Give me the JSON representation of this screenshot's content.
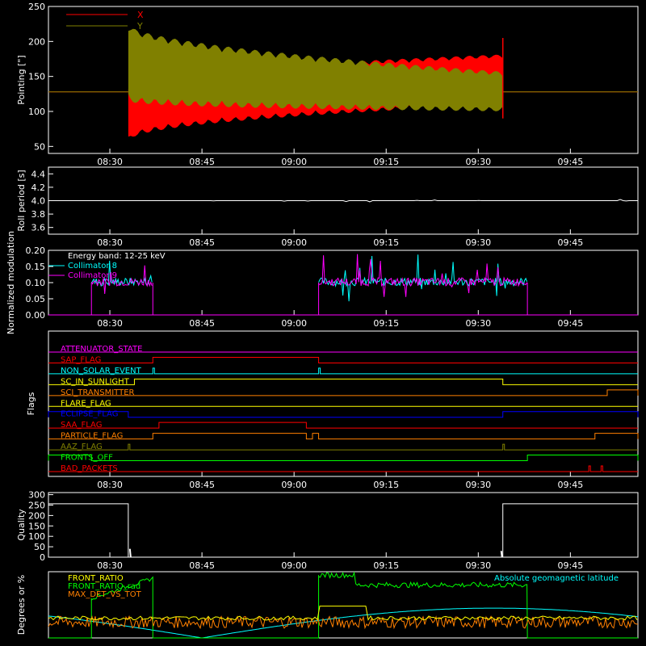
{
  "colors": {
    "background": "#000000",
    "axes": "#ffffff",
    "red": "#ff0000",
    "olive": "#808000",
    "cyan": "#00ffff",
    "magenta": "#ff00ff",
    "green": "#00ff00",
    "yellow": "#ffff00",
    "orange": "#ff8000",
    "blue": "#0000ff",
    "white": "#ffffff"
  },
  "time_ticks": [
    "08:30",
    "08:45",
    "09:00",
    "09:15",
    "09:30",
    "09:45"
  ],
  "chart_data": [
    {
      "id": "pointing",
      "type": "line",
      "title": "",
      "ylabel": "Pointing [\"]",
      "xlabel": "",
      "ylim": [
        40,
        250
      ],
      "yticks": [
        50,
        100,
        150,
        200,
        250
      ],
      "legend": "top-left",
      "series": [
        {
          "name": "X",
          "color": "red",
          "baseline": 128,
          "active_range": [
            "08:33",
            "09:34"
          ],
          "upper_start": 132,
          "upper_end": 176,
          "lower_start": 64,
          "lower_end": 115
        },
        {
          "name": "Y",
          "color": "olive",
          "baseline": 128,
          "active_range": [
            "08:33",
            "09:34"
          ],
          "upper_start": 215,
          "upper_end": 150,
          "lower_start": 125,
          "lower_end": 107
        }
      ]
    },
    {
      "id": "roll",
      "type": "line",
      "title": "",
      "ylabel": "Roll period [s]",
      "xlabel": "",
      "ylim": [
        3.5,
        4.5
      ],
      "yticks": [
        3.6,
        3.8,
        4.0,
        4.2,
        4.4
      ],
      "series": [
        {
          "color": "white",
          "value": 4.0
        }
      ]
    },
    {
      "id": "modulation",
      "type": "line",
      "title": "",
      "ylabel": "Normalized modulation",
      "xlabel": "",
      "ylim": [
        0.0,
        0.2
      ],
      "yticks": [
        0.0,
        0.05,
        0.1,
        0.15,
        0.2
      ],
      "annotation": "Energy band: 12-25 keV",
      "legend": "top-left",
      "active_ranges": [
        [
          "08:27",
          "08:37"
        ],
        [
          "09:04",
          "09:38"
        ]
      ],
      "series": [
        {
          "name": "Collimator 8",
          "color": "cyan",
          "level": 0.1
        },
        {
          "name": "Collimator 9",
          "color": "magenta",
          "level": 0.1
        }
      ]
    },
    {
      "id": "flags",
      "type": "line",
      "title": "",
      "ylabel": "Flags",
      "xlabel": "",
      "flags": [
        {
          "name": "ATTENUATOR_STATE",
          "color": "magenta",
          "transitions": []
        },
        {
          "name": "SAP_FLAG",
          "color": "red",
          "transitions": [
            [
              "08:37",
              "09:04"
            ]
          ]
        },
        {
          "name": "NON_SOLAR_EVENT",
          "color": "cyan",
          "transitions": [
            [
              "08:37",
              "08:37"
            ],
            [
              "09:04",
              "09:04"
            ]
          ]
        },
        {
          "name": "SC_IN_SUNLIGHT",
          "color": "yellow",
          "transitions": [
            [
              "08:34",
              "09:34"
            ]
          ]
        },
        {
          "name": "SCI_TRANSMITTER",
          "color": "orange",
          "transitions": [
            [
              "09:51",
              "09:56"
            ]
          ]
        },
        {
          "name": "FLARE_FLAG",
          "color": "yellow",
          "transitions": []
        },
        {
          "name": "ECLIPSE_FLAG",
          "color": "blue",
          "transitions": [
            [
              "08:20",
              "08:33"
            ],
            [
              "09:34",
              "09:56"
            ]
          ]
        },
        {
          "name": "SAA_FLAG",
          "color": "red",
          "transitions": [
            [
              "08:38",
              "09:02"
            ]
          ]
        },
        {
          "name": "PARTICLE_FLAG",
          "color": "orange",
          "transitions": [
            [
              "08:37",
              "09:02"
            ],
            [
              "09:03",
              "09:04"
            ],
            [
              "09:49",
              "09:56"
            ]
          ]
        },
        {
          "name": "AAZ_FLAG",
          "color": "olive",
          "transitions": [
            [
              "08:33",
              "08:33"
            ],
            [
              "09:34",
              "09:34"
            ]
          ]
        },
        {
          "name": "FRONTS_OFF",
          "color": "green",
          "transitions": [
            [
              "08:20",
              "08:27"
            ],
            [
              "09:38",
              "09:56"
            ]
          ]
        },
        {
          "name": "BAD_PACKETS",
          "color": "red",
          "transitions": [
            [
              "09:48",
              "09:48"
            ],
            [
              "09:50",
              "09:50"
            ]
          ]
        }
      ]
    },
    {
      "id": "quality",
      "type": "line",
      "title": "",
      "ylabel": "Quality",
      "xlabel": "",
      "ylim": [
        0,
        310
      ],
      "yticks": [
        0,
        50,
        100,
        150,
        200,
        250,
        300
      ],
      "series": [
        {
          "color": "white",
          "high": 256,
          "low": 0,
          "low_range": [
            "08:33",
            "09:34"
          ]
        }
      ]
    },
    {
      "id": "geomag",
      "type": "line",
      "title": "",
      "ylabel": "Degrees or %",
      "xlabel": "",
      "ylim": [
        0,
        100
      ],
      "legend": "top-left",
      "annotation": "Absolute geomagnetic latitude",
      "series": [
        {
          "name": "FRONT_RATIO",
          "color": "yellow"
        },
        {
          "name": "FRONT_RATIO_rad",
          "color": "green"
        },
        {
          "name": "MAX_DET_VS_TOT",
          "color": "orange"
        }
      ]
    }
  ]
}
